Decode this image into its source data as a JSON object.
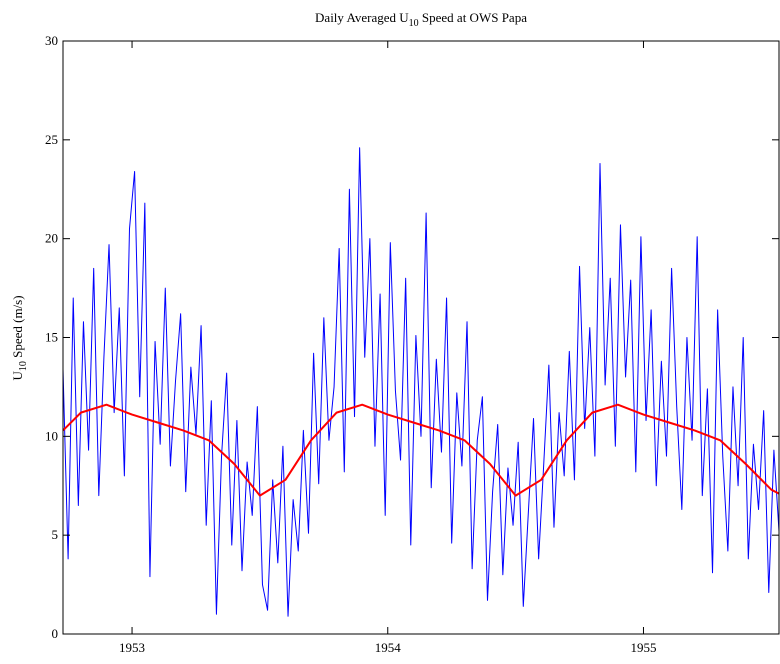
{
  "chart_data": {
    "type": "line",
    "title": [
      "Daily Averaged U",
      "10",
      " Speed at OWS Papa"
    ],
    "y_label": [
      "U",
      "10",
      " Speed (m/s)"
    ],
    "xlim": [
      1952.73,
      1955.53
    ],
    "xticks": [
      1953,
      1954,
      1955
    ],
    "ylim": [
      0,
      30
    ],
    "yticks": [
      0,
      5,
      10,
      15,
      20,
      25,
      30
    ],
    "grid": false,
    "series": [
      {
        "color": "#0000ff",
        "width": 1,
        "x": [
          1952.73,
          1952.75,
          1952.77,
          1952.79,
          1952.81,
          1952.83,
          1952.85,
          1952.87,
          1952.89,
          1952.91,
          1952.93,
          1952.95,
          1952.97,
          1952.99,
          1953.01,
          1953.03,
          1953.05,
          1953.07,
          1953.09,
          1953.11,
          1953.13,
          1953.15,
          1953.17,
          1953.19,
          1953.21,
          1953.23,
          1953.25,
          1953.27,
          1953.29,
          1953.31,
          1953.33,
          1953.35,
          1953.37,
          1953.39,
          1953.41,
          1953.43,
          1953.45,
          1953.47,
          1953.49,
          1953.51,
          1953.53,
          1953.55,
          1953.57,
          1953.59,
          1953.61,
          1953.63,
          1953.65,
          1953.67,
          1953.69,
          1953.71,
          1953.73,
          1953.75,
          1953.77,
          1953.79,
          1953.81,
          1953.83,
          1953.85,
          1953.87,
          1953.89,
          1953.91,
          1953.93,
          1953.95,
          1953.97,
          1953.99,
          1954.01,
          1954.03,
          1954.05,
          1954.07,
          1954.09,
          1954.11,
          1954.13,
          1954.15,
          1954.17,
          1954.19,
          1954.21,
          1954.23,
          1954.25,
          1954.27,
          1954.29,
          1954.31,
          1954.33,
          1954.35,
          1954.37,
          1954.39,
          1954.41,
          1954.43,
          1954.45,
          1954.47,
          1954.49,
          1954.51,
          1954.53,
          1954.55,
          1954.57,
          1954.59,
          1954.61,
          1954.63,
          1954.65,
          1954.67,
          1954.69,
          1954.71,
          1954.73,
          1954.75,
          1954.77,
          1954.79,
          1954.81,
          1954.83,
          1954.85,
          1954.87,
          1954.89,
          1954.91,
          1954.93,
          1954.95,
          1954.97,
          1954.99,
          1955.01,
          1955.03,
          1955.05,
          1955.07,
          1955.09,
          1955.11,
          1955.13,
          1955.15,
          1955.17,
          1955.19,
          1955.21,
          1955.23,
          1955.25,
          1955.27,
          1955.29,
          1955.31,
          1955.33,
          1955.35,
          1955.37,
          1955.39,
          1955.41,
          1955.43,
          1955.45,
          1955.47,
          1955.49,
          1955.51,
          1955.53
        ],
        "values": [
          13.4,
          3.8,
          17.0,
          6.5,
          15.8,
          9.3,
          18.5,
          7.0,
          14.0,
          19.7,
          11.2,
          16.5,
          8.0,
          20.5,
          23.4,
          12.0,
          21.8,
          2.9,
          14.8,
          9.6,
          17.5,
          8.5,
          12.8,
          16.2,
          7.2,
          13.5,
          10.1,
          15.6,
          5.5,
          11.8,
          1.0,
          9.0,
          13.2,
          4.5,
          10.8,
          3.2,
          8.7,
          6.0,
          11.5,
          2.5,
          1.2,
          7.8,
          3.6,
          9.5,
          0.9,
          6.8,
          4.2,
          10.3,
          5.1,
          14.2,
          7.6,
          16.0,
          9.8,
          12.5,
          19.5,
          8.2,
          22.5,
          11.0,
          24.6,
          14.0,
          20.0,
          9.5,
          17.2,
          6.0,
          19.8,
          12.3,
          8.8,
          18.0,
          4.5,
          15.1,
          10.0,
          21.3,
          7.4,
          13.9,
          9.2,
          17.0,
          4.6,
          12.2,
          8.5,
          15.8,
          3.3,
          9.8,
          12.0,
          1.7,
          7.2,
          10.6,
          3.0,
          8.4,
          5.5,
          9.7,
          1.4,
          6.2,
          10.9,
          3.8,
          8.6,
          13.6,
          5.4,
          11.2,
          8.0,
          14.3,
          7.8,
          18.6,
          10.4,
          15.5,
          9.0,
          23.8,
          12.6,
          18.0,
          9.5,
          20.7,
          13.0,
          17.9,
          8.2,
          20.1,
          10.8,
          16.4,
          7.5,
          13.8,
          9.0,
          18.5,
          11.5,
          6.3,
          15.0,
          9.8,
          20.1,
          7.0,
          12.4,
          3.1,
          16.4,
          9.0,
          4.2,
          12.5,
          7.5,
          15.0,
          3.8,
          9.6,
          6.3,
          11.3,
          2.1,
          9.3,
          5.2
        ]
      },
      {
        "color": "#ff0000",
        "width": 2,
        "x": [
          1952.73,
          1952.8,
          1952.9,
          1953.0,
          1953.1,
          1953.2,
          1953.3,
          1953.4,
          1953.5,
          1953.6,
          1953.7,
          1953.8,
          1953.9,
          1954.0,
          1954.1,
          1954.2,
          1954.3,
          1954.4,
          1954.5,
          1954.6,
          1954.7,
          1954.8,
          1954.9,
          1955.0,
          1955.1,
          1955.2,
          1955.3,
          1955.4,
          1955.5,
          1955.53
        ],
        "values": [
          10.3,
          11.2,
          11.6,
          11.1,
          10.7,
          10.3,
          9.8,
          8.6,
          7.0,
          7.8,
          9.8,
          11.2,
          11.6,
          11.1,
          10.7,
          10.3,
          9.8,
          8.6,
          7.0,
          7.8,
          9.8,
          11.2,
          11.6,
          11.1,
          10.7,
          10.3,
          9.8,
          8.6,
          7.3,
          7.1
        ]
      }
    ]
  }
}
